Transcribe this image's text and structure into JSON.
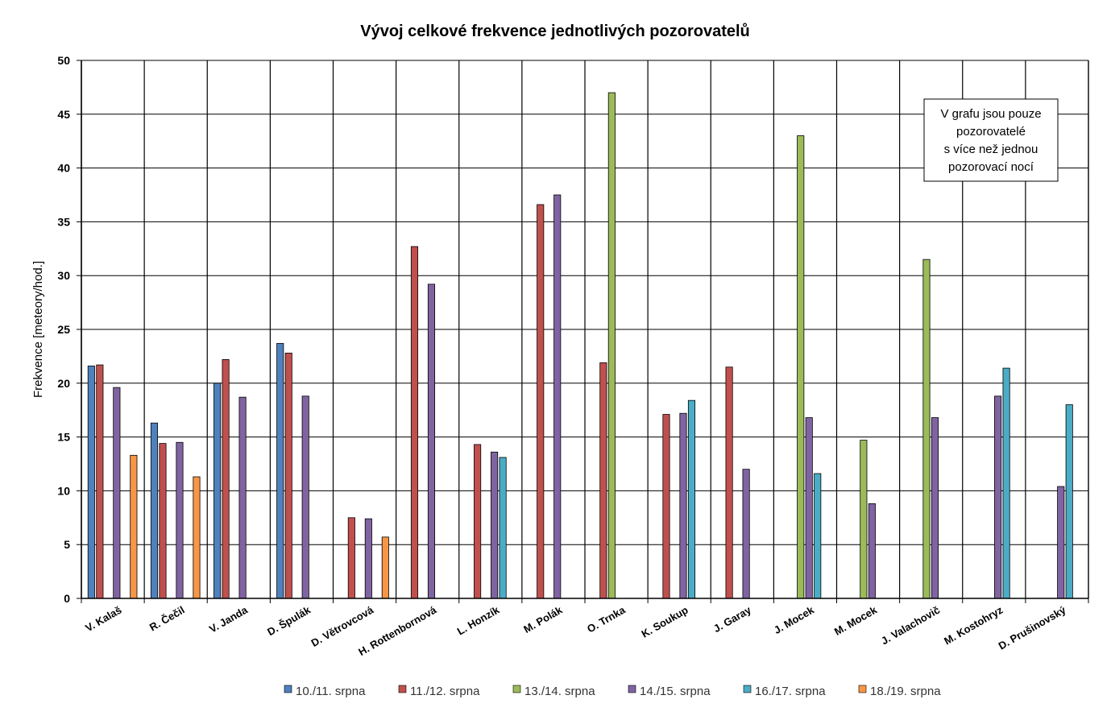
{
  "chart_data": {
    "type": "bar",
    "title": "Vývoj celkové frekvence jednotlivých pozorovatelů",
    "ylabel": "Frekvence [meteory/hod.]",
    "xlabel": "",
    "ylim": [
      0,
      50
    ],
    "yticks": [
      0,
      5,
      10,
      15,
      20,
      25,
      30,
      35,
      40,
      45,
      50
    ],
    "grid": true,
    "legend_position": "bottom",
    "categories": [
      "V. Kalaš",
      "R. Čečil",
      "V. Janda",
      "D. Špulák",
      "D. Větrovcová",
      "H. Rottenbornová",
      "L. Honzík",
      "M. Polák",
      "O. Trnka",
      "K. Soukup",
      "J. Garay",
      "J. Mocek",
      "M. Mocek",
      "J. Valachovič",
      "M. Kostohryz",
      "D. Prušinovský"
    ],
    "series": [
      {
        "name": "10./11. srpna",
        "color": "#4F81BD",
        "values": [
          21.6,
          16.3,
          20.0,
          23.7,
          null,
          null,
          null,
          null,
          null,
          null,
          null,
          null,
          null,
          null,
          null,
          null
        ]
      },
      {
        "name": "11./12. srpna",
        "color": "#C0504D",
        "values": [
          21.7,
          14.4,
          22.2,
          22.8,
          7.5,
          32.7,
          14.3,
          36.6,
          21.9,
          17.1,
          21.5,
          null,
          null,
          null,
          null,
          null
        ]
      },
      {
        "name": "13./14. srpna",
        "color": "#9BBB59",
        "values": [
          null,
          null,
          null,
          null,
          null,
          null,
          null,
          null,
          47.0,
          null,
          null,
          43.0,
          14.7,
          31.5,
          null,
          null
        ]
      },
      {
        "name": "14./15. srpna",
        "color": "#8064A2",
        "values": [
          19.6,
          14.5,
          18.7,
          18.8,
          7.4,
          29.2,
          13.6,
          37.5,
          null,
          17.2,
          12.0,
          16.8,
          8.8,
          16.8,
          18.8,
          10.4
        ]
      },
      {
        "name": "16./17. srpna",
        "color": "#4BACC6",
        "values": [
          null,
          null,
          null,
          null,
          null,
          null,
          13.1,
          null,
          null,
          18.4,
          null,
          11.6,
          null,
          null,
          21.4,
          18.0
        ]
      },
      {
        "name": "18./19. srpna",
        "color": "#F79646",
        "values": [
          13.3,
          11.3,
          null,
          null,
          5.7,
          null,
          null,
          null,
          null,
          null,
          null,
          null,
          null,
          null,
          null,
          null
        ]
      }
    ],
    "annotation": [
      "V grafu jsou pouze",
      "pozorovatelé",
      "s více než jednou",
      "pozorovací nocí"
    ]
  }
}
